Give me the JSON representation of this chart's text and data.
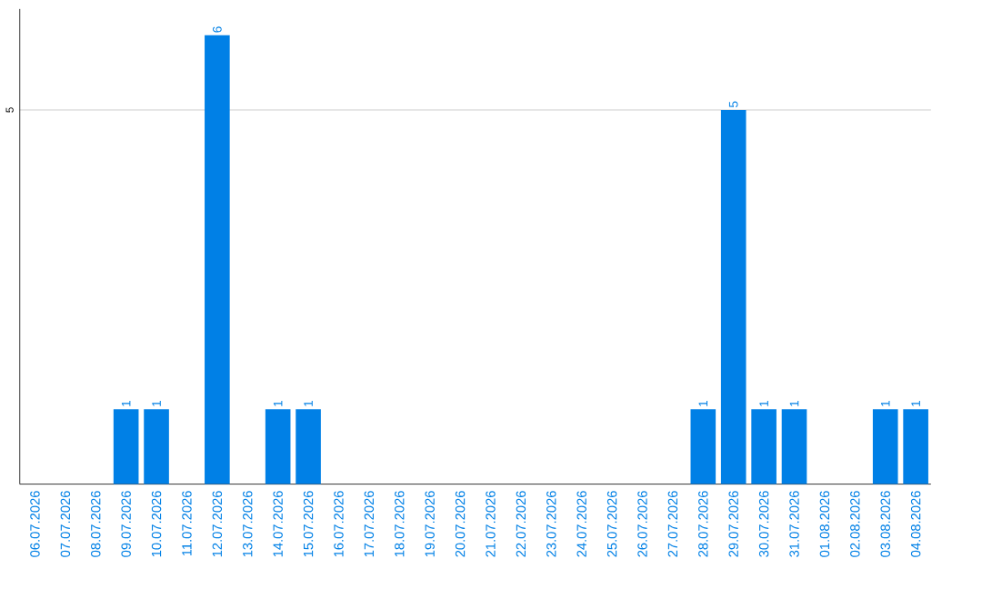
{
  "chart_data": {
    "type": "bar",
    "categories": [
      "06.07.2026",
      "07.07.2026",
      "08.07.2026",
      "09.07.2026",
      "10.07.2026",
      "11.07.2026",
      "12.07.2026",
      "13.07.2026",
      "14.07.2026",
      "15.07.2026",
      "16.07.2026",
      "17.07.2026",
      "18.07.2026",
      "19.07.2026",
      "20.07.2026",
      "21.07.2026",
      "22.07.2026",
      "23.07.2026",
      "24.07.2026",
      "25.07.2026",
      "26.07.2026",
      "27.07.2026",
      "28.07.2026",
      "29.07.2026",
      "30.07.2026",
      "31.07.2026",
      "01.08.2026",
      "02.08.2026",
      "03.08.2026",
      "04.08.2026"
    ],
    "values": [
      0,
      0,
      0,
      1,
      1,
      0,
      6,
      0,
      1,
      1,
      0,
      0,
      0,
      0,
      0,
      0,
      0,
      0,
      0,
      0,
      0,
      0,
      1,
      5,
      1,
      1,
      0,
      0,
      1,
      1
    ],
    "value_labels": [
      null,
      null,
      null,
      "1",
      "1",
      null,
      "6",
      null,
      "1",
      "1",
      null,
      null,
      null,
      null,
      null,
      null,
      null,
      null,
      null,
      null,
      null,
      null,
      "1",
      "5",
      "1",
      "1",
      null,
      null,
      "1",
      "1"
    ],
    "color": "#0080e6",
    "ylim": [
      0,
      6.35
    ],
    "yticks": [
      5
    ],
    "grid": "y"
  }
}
